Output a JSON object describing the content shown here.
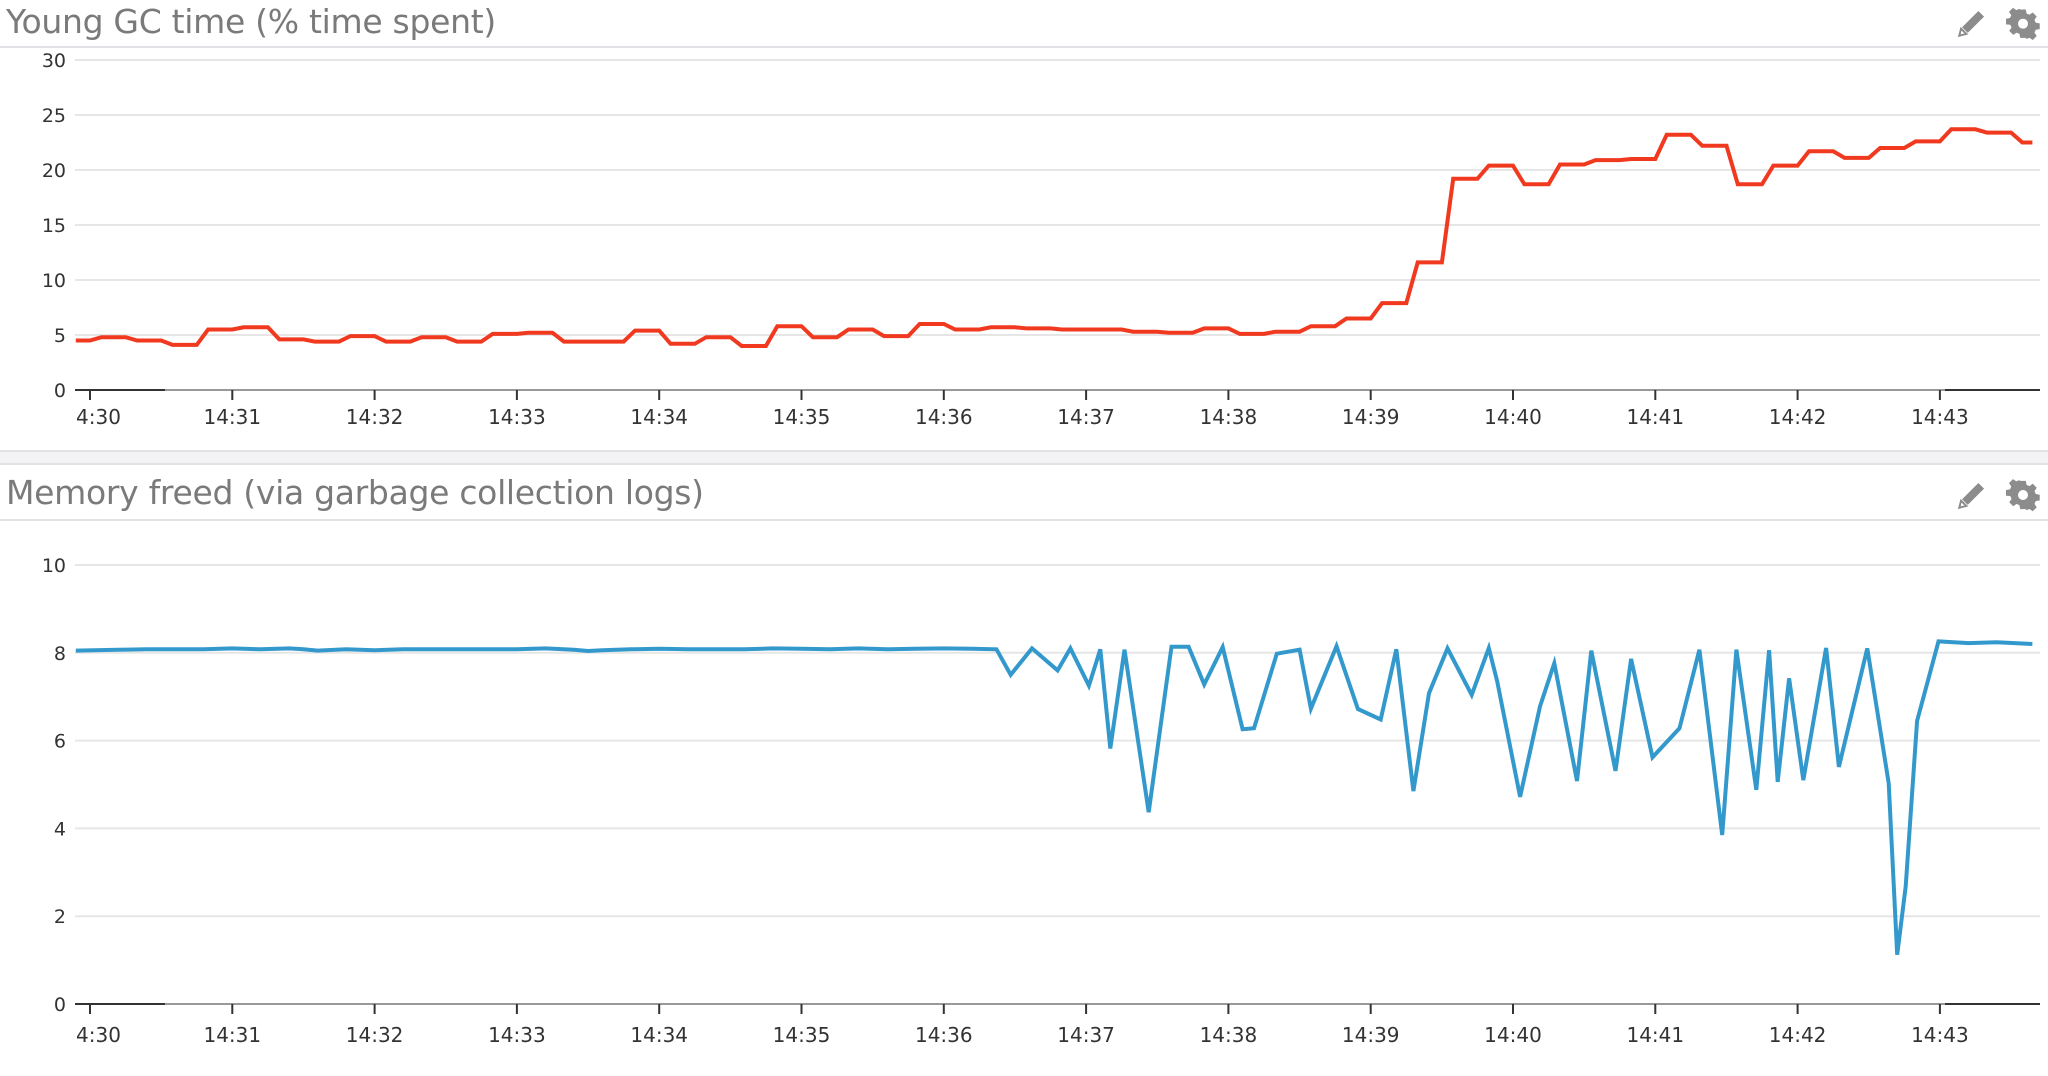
{
  "widgets": [
    {
      "title": "Young GC time (% time spent)",
      "edit_icon": "pencil-icon",
      "settings_icon": "gear-icon"
    },
    {
      "title": "Memory freed (via garbage collection logs)",
      "edit_icon": "pencil-icon",
      "settings_icon": "gear-icon"
    }
  ],
  "colors": {
    "series_red": "#f0391f",
    "series_blue": "#3399cc",
    "gridline": "#e6e6e6",
    "title_text": "#7a7a7a",
    "icon": "#8c8c8c"
  },
  "chart_data": [
    {
      "type": "line",
      "title": "Young GC time (% time spent)",
      "xlabel": "",
      "ylabel": "",
      "ylim": [
        0,
        30
      ],
      "yticks": [
        0,
        5,
        10,
        15,
        20,
        25,
        30
      ],
      "xtick_labels": [
        "4:30",
        "14:31",
        "14:32",
        "14:33",
        "14:34",
        "14:35",
        "14:36",
        "14:37",
        "14:38",
        "14:39",
        "14:40",
        "14:41",
        "14:42",
        "14:43"
      ],
      "x_unit": "minutes after 14:30",
      "grid": true,
      "legend": "none",
      "series": [
        {
          "name": "Young GC time",
          "color": "#f0391f",
          "x": [
            -0.1,
            0.0,
            0.08,
            0.25,
            0.33,
            0.5,
            0.58,
            0.75,
            0.83,
            1.0,
            1.08,
            1.25,
            1.33,
            1.5,
            1.58,
            1.75,
            1.83,
            2.0,
            2.08,
            2.25,
            2.33,
            2.5,
            2.58,
            2.75,
            2.83,
            3.0,
            3.08,
            3.25,
            3.33,
            3.5,
            3.58,
            3.75,
            3.83,
            4.0,
            4.08,
            4.25,
            4.33,
            4.5,
            4.58,
            4.75,
            4.83,
            5.0,
            5.08,
            5.25,
            5.33,
            5.5,
            5.58,
            5.75,
            5.83,
            6.0,
            6.08,
            6.25,
            6.33,
            6.5,
            6.58,
            6.75,
            6.83,
            7.0,
            7.08,
            7.25,
            7.33,
            7.5,
            7.58,
            7.75,
            7.83,
            8.0,
            8.08,
            8.25,
            8.33,
            8.5,
            8.58,
            8.75,
            8.83,
            9.0,
            9.08,
            9.25,
            9.33,
            9.5,
            9.58,
            9.75,
            9.83,
            10.0,
            10.08,
            10.25,
            10.33,
            10.5,
            10.58,
            10.75,
            10.83,
            11.0,
            11.08,
            11.25,
            11.33,
            11.5,
            11.58,
            11.75,
            11.83,
            12.0,
            12.08,
            12.25,
            12.33,
            12.5,
            12.58,
            12.75,
            12.83,
            13.0,
            13.08,
            13.25,
            13.33,
            13.5,
            13.58,
            13.65
          ],
          "values": [
            4.5,
            4.5,
            4.8,
            4.8,
            4.5,
            4.5,
            4.1,
            4.1,
            5.5,
            5.5,
            5.7,
            5.7,
            4.6,
            4.6,
            4.4,
            4.4,
            4.9,
            4.9,
            4.4,
            4.4,
            4.8,
            4.8,
            4.4,
            4.4,
            5.1,
            5.1,
            5.2,
            5.2,
            4.4,
            4.4,
            4.4,
            4.4,
            5.4,
            5.4,
            4.2,
            4.2,
            4.8,
            4.8,
            4.0,
            4.0,
            5.8,
            5.8,
            4.8,
            4.8,
            5.5,
            5.5,
            4.9,
            4.9,
            6.0,
            6.0,
            5.5,
            5.5,
            5.7,
            5.7,
            5.6,
            5.6,
            5.5,
            5.5,
            5.5,
            5.5,
            5.3,
            5.3,
            5.2,
            5.2,
            5.6,
            5.6,
            5.1,
            5.1,
            5.3,
            5.3,
            5.8,
            5.8,
            6.5,
            6.5,
            7.9,
            7.9,
            11.6,
            11.6,
            19.2,
            19.2,
            20.4,
            20.4,
            18.7,
            18.7,
            20.5,
            20.5,
            20.9,
            20.9,
            21.0,
            21.0,
            23.2,
            23.2,
            22.2,
            22.2,
            18.7,
            18.7,
            20.4,
            20.4,
            21.7,
            21.7,
            21.1,
            21.1,
            22.0,
            22.0,
            22.6,
            22.6,
            23.7,
            23.7,
            23.4,
            23.4,
            22.5,
            22.5
          ]
        }
      ]
    },
    {
      "type": "line",
      "title": "Memory freed (via garbage collection logs)",
      "xlabel": "",
      "ylabel": "",
      "ylim": [
        0,
        10
      ],
      "yticks": [
        0,
        2,
        4,
        6,
        8,
        10
      ],
      "xtick_labels": [
        "4:30",
        "14:31",
        "14:32",
        "14:33",
        "14:34",
        "14:35",
        "14:36",
        "14:37",
        "14:38",
        "14:39",
        "14:40",
        "14:41",
        "14:42",
        "14:43"
      ],
      "x_unit": "minutes after 14:30",
      "grid": true,
      "legend": "none",
      "series": [
        {
          "name": "Memory freed",
          "color": "#3399cc",
          "x": [
            -0.1,
            0.2,
            0.4,
            0.6,
            0.8,
            1.0,
            1.2,
            1.4,
            1.5,
            1.6,
            1.8,
            2.0,
            2.2,
            2.4,
            2.6,
            2.8,
            3.0,
            3.2,
            3.4,
            3.5,
            3.6,
            3.8,
            4.0,
            4.2,
            4.4,
            4.6,
            4.8,
            5.0,
            5.2,
            5.4,
            5.6,
            5.8,
            6.0,
            6.2,
            6.37,
            6.47,
            6.62,
            6.8,
            6.89,
            7.02,
            7.1,
            7.17,
            7.27,
            7.44,
            7.6,
            7.72,
            7.83,
            7.96,
            8.1,
            8.18,
            8.34,
            8.5,
            8.58,
            8.76,
            8.91,
            9.07,
            9.18,
            9.3,
            9.41,
            9.54,
            9.71,
            9.83,
            9.89,
            10.05,
            10.19,
            10.29,
            10.45,
            10.55,
            10.72,
            10.83,
            10.98,
            11.17,
            11.31,
            11.47,
            11.57,
            11.71,
            11.8,
            11.86,
            11.94,
            12.04,
            12.2,
            12.29,
            12.49,
            12.64,
            12.7,
            12.76,
            12.84,
            12.99,
            13.2,
            13.4,
            13.65
          ],
          "values": [
            8.05,
            8.07,
            8.08,
            8.08,
            8.08,
            8.1,
            8.08,
            8.1,
            8.08,
            8.05,
            8.08,
            8.06,
            8.08,
            8.08,
            8.08,
            8.08,
            8.08,
            8.1,
            8.07,
            8.04,
            8.06,
            8.08,
            8.09,
            8.08,
            8.08,
            8.08,
            8.1,
            8.09,
            8.08,
            8.1,
            8.08,
            8.09,
            8.1,
            8.09,
            8.08,
            7.5,
            8.1,
            7.6,
            8.1,
            7.25,
            8.08,
            5.82,
            8.07,
            4.37,
            8.14,
            8.14,
            7.28,
            8.13,
            6.26,
            6.28,
            7.98,
            8.07,
            6.73,
            8.15,
            6.72,
            6.48,
            8.08,
            4.85,
            7.08,
            8.1,
            7.04,
            8.11,
            7.34,
            4.72,
            6.78,
            7.76,
            5.08,
            8.05,
            5.31,
            7.86,
            5.62,
            6.28,
            8.07,
            3.85,
            8.07,
            4.88,
            8.06,
            5.06,
            7.42,
            5.1,
            8.11,
            5.4,
            8.1,
            5.03,
            1.12,
            2.68,
            6.45,
            8.26,
            8.22,
            8.24,
            8.2
          ]
        }
      ]
    }
  ]
}
